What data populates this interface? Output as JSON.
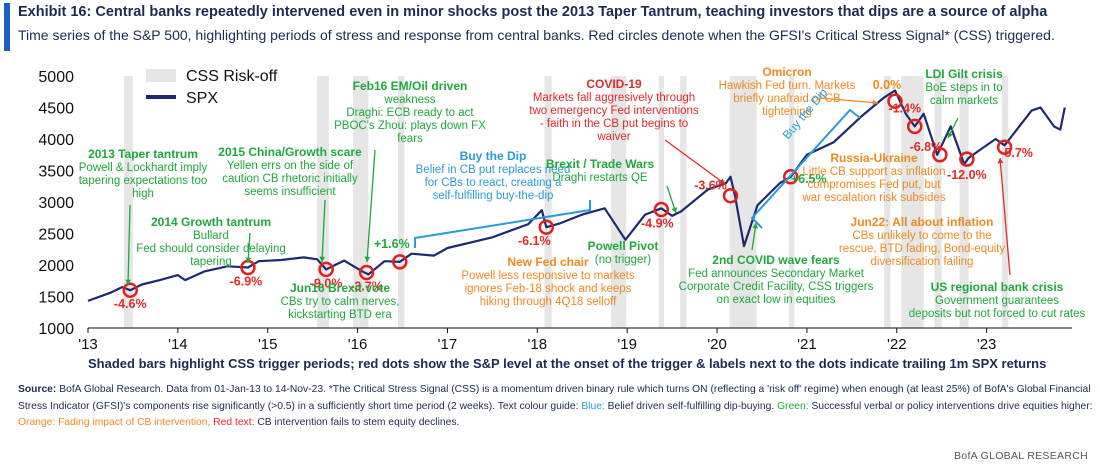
{
  "header": {
    "title": "Exhibit 16: Central banks repeatedly intervened even in minor shocks post the 2013 Taper Tantrum, teaching investors that dips are a source of alpha",
    "subtitle": "Time series of the S&P 500, highlighting periods of stress and response from central banks. Red circles denote when the GFSI's Critical Stress Signal* (CSS) triggered."
  },
  "caption": "Shaded bars highlight CSS trigger periods; red dots show the S&P level at the onset of the trigger & labels next to the dots indicate trailing 1m SPX returns",
  "footer": {
    "source_label": "Source:",
    "source_text": "BofA Global Research. Data from 01-Jan-13 to 14-Nov-23. *The Critical Stress Signal (CSS) is a momentum driven binary rule which turns ON (reflecting a 'risk off' regime) when enough (at least 25%) of BofA's Global Financial Stress Indicator (GFSI)'s components rise significantly (>0.5) in a sufficiently short time period (2 weeks). Text colour guide:",
    "blue_text": "Belief driven self-fulfilling dip-buying.",
    "green_text": "Successful verbal or policy interventions drive equities higher:",
    "orange_text": "Fading impact of CB intervention,",
    "red_text": "Red text:",
    "red_desc": "CB intervention fails to stem equity declines.",
    "blue_label": "Blue:",
    "green_label": "Green:",
    "orange_label": "Orange:",
    "brand": "BofA GLOBAL RESEARCH"
  },
  "colors": {
    "accent": "#1f5fbf",
    "line": "#1d2a6e",
    "shade": "#e6e6e6",
    "dot": "#e02020",
    "blue": "#2a9bd6",
    "green": "#1fa83c",
    "orange": "#ef8a22",
    "red": "#e12a2a",
    "axis": "#111111"
  },
  "chart_data": {
    "type": "line",
    "xlabel": "",
    "ylabel": "",
    "ylim": [
      1000,
      5000
    ],
    "xlim": [
      2013.0,
      2023.95
    ],
    "y_ticks": [
      1000,
      1500,
      2000,
      2500,
      3000,
      3500,
      4000,
      4500,
      5000
    ],
    "x_ticks": [
      {
        "label": "'13",
        "x": 2013.0
      },
      {
        "label": "'14",
        "x": 2014.0
      },
      {
        "label": "'15",
        "x": 2015.0
      },
      {
        "label": "'16",
        "x": 2016.0
      },
      {
        "label": "'17",
        "x": 2017.0
      },
      {
        "label": "'18",
        "x": 2018.0
      },
      {
        "label": "'19",
        "x": 2019.0
      },
      {
        "label": "'20",
        "x": 2020.0
      },
      {
        "label": "'21",
        "x": 2021.0
      },
      {
        "label": "'22",
        "x": 2022.0
      },
      {
        "label": "'23",
        "x": 2023.0
      }
    ],
    "legend": [
      {
        "name": "CSS Risk-off",
        "kind": "bar",
        "color": "#e6e6e6"
      },
      {
        "name": "SPX",
        "kind": "line",
        "color": "#1d2a6e"
      }
    ],
    "shaded_periods": [
      [
        2013.4,
        2013.5
      ],
      [
        2015.55,
        2015.68
      ],
      [
        2015.95,
        2016.12
      ],
      [
        2016.45,
        2016.52
      ],
      [
        2018.08,
        2018.16
      ],
      [
        2018.82,
        2018.99
      ],
      [
        2019.35,
        2019.41
      ],
      [
        2019.59,
        2019.66
      ],
      [
        2020.14,
        2020.44
      ],
      [
        2020.8,
        2020.86
      ],
      [
        2021.86,
        2021.93
      ],
      [
        2022.05,
        2022.3
      ],
      [
        2022.42,
        2022.5
      ],
      [
        2022.7,
        2022.8
      ],
      [
        2023.17,
        2023.24
      ]
    ],
    "series": [
      {
        "name": "SPX",
        "x": [
          2013.0,
          2013.25,
          2013.38,
          2013.47,
          2013.6,
          2013.8,
          2014.0,
          2014.08,
          2014.3,
          2014.55,
          2014.78,
          2014.9,
          2015.15,
          2015.4,
          2015.55,
          2015.65,
          2015.85,
          2016.05,
          2016.12,
          2016.3,
          2016.47,
          2016.6,
          2016.85,
          2017.0,
          2017.5,
          2017.9,
          2018.05,
          2018.1,
          2018.25,
          2018.5,
          2018.75,
          2018.98,
          2019.2,
          2019.38,
          2019.5,
          2019.6,
          2019.9,
          2020.1,
          2020.15,
          2020.2,
          2020.3,
          2020.45,
          2020.7,
          2020.82,
          2021.0,
          2021.3,
          2021.6,
          2021.85,
          2021.98,
          2022.1,
          2022.2,
          2022.3,
          2022.45,
          2022.6,
          2022.75,
          2022.8,
          2022.95,
          2023.1,
          2023.2,
          2023.5,
          2023.6,
          2023.75,
          2023.82,
          2023.87
        ],
        "y": [
          1430,
          1560,
          1650,
          1600,
          1690,
          1760,
          1840,
          1760,
          1900,
          1980,
          1960,
          2060,
          2080,
          2120,
          2090,
          1930,
          2070,
          1900,
          1850,
          2060,
          2050,
          2180,
          2150,
          2270,
          2440,
          2650,
          2870,
          2600,
          2660,
          2800,
          2900,
          2400,
          2800,
          2900,
          2780,
          2850,
          3200,
          3300,
          3400,
          3100,
          2300,
          2950,
          3300,
          3400,
          3750,
          3950,
          4350,
          4650,
          4770,
          4400,
          4200,
          4400,
          3750,
          4200,
          3600,
          3700,
          3850,
          4000,
          3900,
          4450,
          4500,
          4200,
          4150,
          4500
        ]
      }
    ],
    "trigger_points": [
      {
        "x": 2013.47,
        "y": 1600,
        "label": "-4.6%",
        "color": "red"
      },
      {
        "x": 2014.78,
        "y": 1960,
        "label": "-6.9%",
        "color": "red"
      },
      {
        "x": 2015.65,
        "y": 1930,
        "label": "-9.0%",
        "color": "red"
      },
      {
        "x": 2016.1,
        "y": 1880,
        "label": "-3.7%",
        "color": "red"
      },
      {
        "x": 2016.47,
        "y": 2050,
        "label": "+1.6%",
        "color": "green"
      },
      {
        "x": 2018.1,
        "y": 2600,
        "label": "-6.1%",
        "color": "red"
      },
      {
        "x": 2019.38,
        "y": 2880,
        "label": "-4.9%",
        "color": "red"
      },
      {
        "x": 2020.15,
        "y": 3100,
        "label": "-3.6%",
        "color": "red"
      },
      {
        "x": 2020.82,
        "y": 3400,
        "label": "+6.5%",
        "color": "green"
      },
      {
        "x": 2021.98,
        "y": 4600,
        "label": "0.0%",
        "color": "orange"
      },
      {
        "x": 2022.2,
        "y": 4200,
        "label": "-1.4%",
        "color": "red"
      },
      {
        "x": 2022.48,
        "y": 3750,
        "label": "-6.8%",
        "color": "red"
      },
      {
        "x": 2022.78,
        "y": 3680,
        "label": "-12.0%",
        "color": "red"
      },
      {
        "x": 2023.2,
        "y": 3870,
        "label": "-5.7%",
        "color": "red"
      }
    ],
    "annotations": [
      {
        "title": "2013 Taper tantrum",
        "text": [
          "Powell & Lockhardt imply",
          "tapering expectations too",
          "high"
        ],
        "color": "green"
      },
      {
        "title": "2014 Growth tantrum",
        "text": [
          "Bullard",
          "Fed should consider delaying",
          "tapering"
        ],
        "color": "green"
      },
      {
        "title": "2015 China/Growth scare",
        "text": [
          "Yellen errs on the side of",
          "caution CB rhetoric initially",
          "seems insufficient"
        ],
        "color": "green"
      },
      {
        "title": "Feb16 EM/Oil driven",
        "text": [
          "weakness",
          "Draghi: ECB ready to act",
          "PBOC's Zhou: plays down FX",
          "fears"
        ],
        "color": "green"
      },
      {
        "title": "Jun16 Brexit vote",
        "text": [
          "CBs try to calm nerves,",
          "kickstarting BTD era"
        ],
        "color": "green"
      },
      {
        "title": "Buy the Dip",
        "text": [
          "Belief in CB put replaces need",
          "for CBs to react, creating a",
          "self-fulfilling buy-the-dip"
        ],
        "color": "blue"
      },
      {
        "title": "New Fed chair",
        "text": [
          "Powell less responsive to markets",
          "ignores Feb-18 shock and keeps",
          "hiking through 4Q18 selloff"
        ],
        "color": "orange"
      },
      {
        "title": "Brexit / Trade Wars",
        "text": [
          "Draghi restarts QE"
        ],
        "color": "green"
      },
      {
        "title": "Powell Pivot",
        "text": [
          "(no trigger)"
        ],
        "color": "green"
      },
      {
        "title": "COVID-19",
        "text": [
          "Markets fall aggresively through",
          "two emergency Fed interventions",
          "- faith in the CB put begins to",
          "waiver"
        ],
        "color": "red"
      },
      {
        "title": "2nd COVID wave fears",
        "text": [
          "Fed announces Secondary Market",
          "Corporate Credit Facility, CSS triggers",
          "on exact low in equities"
        ],
        "color": "green"
      },
      {
        "title": "Omicron",
        "text": [
          "Hawkish Fed turn. Markets",
          "briefly unafraid of CB",
          "tightening"
        ],
        "color": "orange"
      },
      {
        "title": "Buy the Dip",
        "text": [],
        "color": "blue"
      },
      {
        "title": "LDI Gilt crisis",
        "text": [
          "BoE steps in to",
          "calm markets"
        ],
        "color": "green"
      },
      {
        "title": "Russia-Ukraine",
        "text": [
          "Little CB support as inflation",
          "compromises Fed put, but",
          "war escalation risk subsides"
        ],
        "color": "orange"
      },
      {
        "title": "Jun22: All about inflation",
        "text": [
          "CBs unlikely to come to the",
          "rescue, BTD fading, Bond-equity",
          "diversification failing"
        ],
        "color": "orange"
      },
      {
        "title": "US regional bank crisis",
        "text": [
          "Government guarantees",
          "deposits but not forced to cut rates"
        ],
        "color": "green"
      }
    ]
  }
}
